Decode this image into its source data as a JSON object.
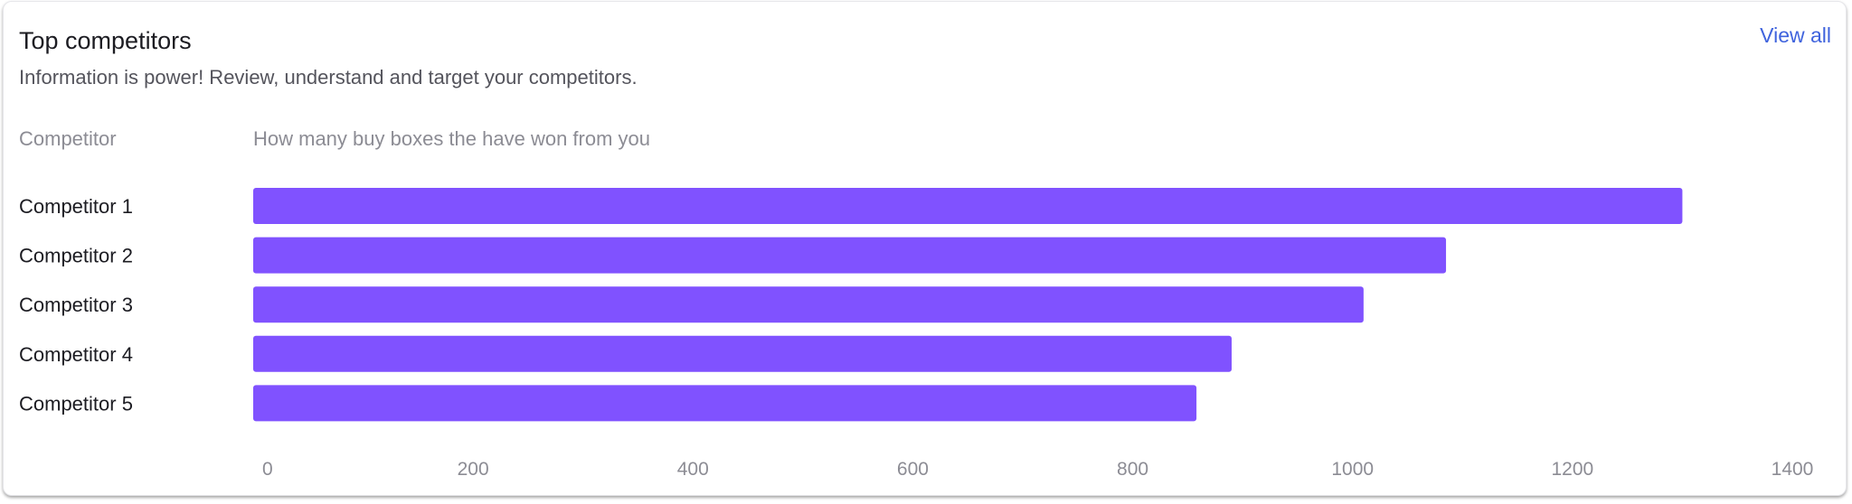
{
  "card": {
    "title": "Top competitors",
    "subtitle": "Information is power! Review, understand and target your competitors.",
    "view_all_label": "View all"
  },
  "columns": {
    "competitor": "Competitor",
    "metric": "How many buy boxes the have won from you"
  },
  "colors": {
    "bar": "#8052ff",
    "link": "#3f63dd",
    "label": "#1c1c22",
    "tick": "#8c8c94"
  },
  "chart_data": {
    "type": "bar",
    "orientation": "horizontal",
    "categories": [
      "Competitor 1",
      "Competitor 2",
      "Competitor 3",
      "Competitor 4",
      "Competitor 5"
    ],
    "values": [
      1300,
      1085,
      1010,
      890,
      858
    ],
    "xlim": [
      0,
      1400
    ],
    "x_ticks": [
      0,
      200,
      400,
      600,
      800,
      1000,
      1200,
      1400
    ],
    "grid": false,
    "legend": "none"
  }
}
